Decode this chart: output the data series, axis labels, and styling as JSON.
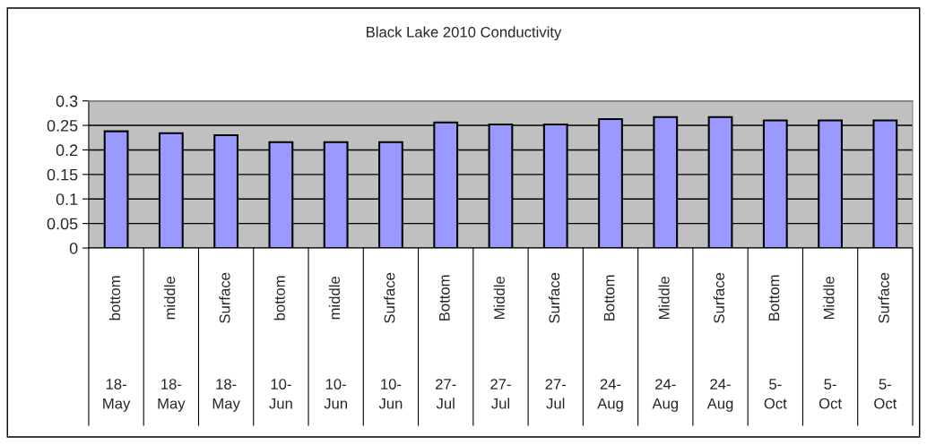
{
  "chart_data": {
    "type": "bar",
    "title": "Black Lake 2010 Conductivity",
    "categories": [
      "bottom\n18-May",
      "middle\n18-May",
      "Surface\n18-May",
      "bottom\n10-Jun",
      "middle\n10-Jun",
      "Surface\n10-Jun",
      "Bottom\n27-Jul",
      "Middle\n27-Jul",
      "Surface\n27-Jul",
      "Bottom\n24-Aug",
      "Middle\n24-Aug",
      "Surface\n24-Aug",
      "Bottom\n5-Oct",
      "Middle\n5-Oct",
      "Surface\n5-Oct"
    ],
    "values": [
      0.238,
      0.234,
      0.23,
      0.216,
      0.216,
      0.216,
      0.256,
      0.252,
      0.252,
      0.263,
      0.267,
      0.267,
      0.26,
      0.26,
      0.26
    ],
    "color": "#9999ff",
    "ylim": [
      0,
      0.3
    ],
    "yticks": [
      0,
      0.05,
      0.1,
      0.15,
      0.2,
      0.25,
      0.3
    ],
    "grid": "y",
    "legend": false
  }
}
